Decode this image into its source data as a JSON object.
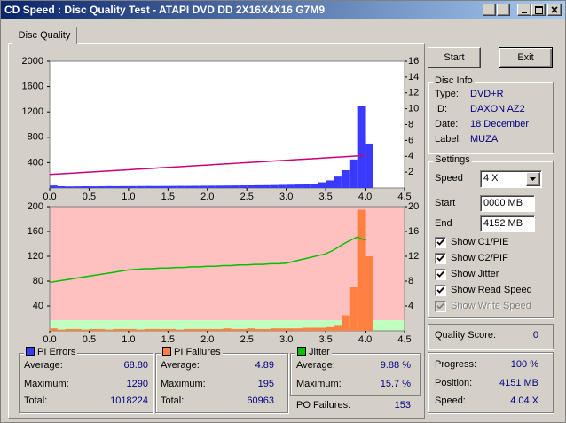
{
  "window": {
    "title": "CD Speed : Disc Quality Test - ATAPI   DVD DD 2X16X4X16 G7M9"
  },
  "tab": "Disc Quality",
  "buttons": [
    "Start",
    "Exit"
  ],
  "disc_info": {
    "title": "Disc Info",
    "rows": [
      {
        "label": "Type:",
        "value": "DVD+R"
      },
      {
        "label": "ID:",
        "value": "DAXON AZ2"
      },
      {
        "label": "Date:",
        "value": "18 December"
      },
      {
        "label": "Label:",
        "value": "MUZA"
      }
    ]
  },
  "settings": {
    "title": "Settings",
    "speed": {
      "label": "Speed",
      "value": "4 X"
    },
    "start": {
      "label": "Start",
      "value": "0000 MB"
    },
    "end": {
      "label": "End",
      "value": "4152 MB"
    },
    "options": [
      {
        "label": "Show C1/PIE",
        "checked": true,
        "enabled": true
      },
      {
        "label": "Show C2/PIF",
        "checked": true,
        "enabled": true
      },
      {
        "label": "Show Jitter",
        "checked": true,
        "enabled": true
      },
      {
        "label": "Show Read Speed",
        "checked": true,
        "enabled": true
      },
      {
        "label": "Show Write Speed",
        "checked": true,
        "enabled": false
      }
    ]
  },
  "quality_score": {
    "label": "Quality Score:",
    "value": "0"
  },
  "progress": [
    {
      "label": "Progress:",
      "value": "100 %"
    },
    {
      "label": "Position:",
      "value": "4151 MB"
    },
    {
      "label": "Speed:",
      "value": "4.04 X"
    }
  ],
  "stats": [
    {
      "title": "PI Errors",
      "rows": [
        {
          "label": "Average:",
          "value": "68.80"
        },
        {
          "label": "Maximum:",
          "value": "1290"
        },
        {
          "label": "Total:",
          "value": "1018224"
        }
      ]
    },
    {
      "title": "PI Failures",
      "rows": [
        {
          "label": "Average:",
          "value": "4.89"
        },
        {
          "label": "Maximum:",
          "value": "195"
        },
        {
          "label": "Total:",
          "value": "60963"
        }
      ]
    },
    {
      "title": "Jitter",
      "rows": [
        {
          "label": "Average:",
          "value": "9.88 %"
        },
        {
          "label": "Maximum:",
          "value": "15.7 %"
        }
      ]
    }
  ],
  "po_failures": {
    "label": "PO Failures:",
    "value": "153"
  },
  "chart_data": [
    {
      "type": "bar",
      "x": [
        0,
        0.1,
        0.2,
        0.3,
        0.4,
        0.5,
        0.6,
        0.7,
        0.8,
        0.9,
        1,
        1.1,
        1.2,
        1.3,
        1.4,
        1.5,
        1.6,
        1.7,
        1.8,
        1.9,
        2,
        2.1,
        2.2,
        2.3,
        2.4,
        2.5,
        2.6,
        2.7,
        2.8,
        2.9,
        3,
        3.1,
        3.2,
        3.3,
        3.4,
        3.5,
        3.6,
        3.7,
        3.8,
        3.9,
        4
      ],
      "xlim": [
        0,
        4.5
      ],
      "xticks": [
        {
          "value": 0,
          "label": "0.0"
        },
        0.5,
        {
          "value": 1,
          "label": "1.0"
        },
        1.5,
        {
          "value": 2,
          "label": "2.0"
        },
        2.5,
        {
          "value": 3,
          "label": "3.0"
        },
        3.5,
        {
          "value": 4,
          "label": "4.0"
        },
        4.5
      ],
      "ylim": [
        0,
        2000
      ],
      "yticks": [
        400,
        800,
        1200,
        1600,
        2000
      ],
      "y2lim": [
        0,
        16
      ],
      "y2ticks": [
        2,
        4,
        6,
        8,
        10,
        12,
        14,
        16
      ],
      "background": "#ffffff",
      "series": [
        {
          "type": "bar",
          "color": "#3a3aff",
          "values": [
            40,
            28,
            25,
            26,
            28,
            27,
            28,
            30,
            29,
            30,
            30,
            31,
            32,
            31,
            32,
            33,
            34,
            34,
            35,
            36,
            37,
            38,
            39,
            40,
            41,
            42,
            44,
            45,
            47,
            50,
            52,
            55,
            60,
            70,
            90,
            120,
            180,
            280,
            450,
            1290,
            700
          ]
        },
        {
          "type": "line",
          "axis": "y2",
          "color": "#cc0077",
          "values": [
            1.7,
            1.76,
            1.82,
            1.88,
            1.94,
            2,
            2.06,
            2.12,
            2.18,
            2.24,
            2.3,
            2.36,
            2.42,
            2.48,
            2.54,
            2.6,
            2.66,
            2.72,
            2.78,
            2.84,
            2.9,
            2.96,
            3.02,
            3.08,
            3.14,
            3.2,
            3.26,
            3.32,
            3.38,
            3.44,
            3.5,
            3.56,
            3.62,
            3.68,
            3.74,
            3.8,
            3.86,
            3.92,
            3.98,
            4.04,
            4.1
          ]
        }
      ]
    },
    {
      "type": "bar",
      "x": [
        0,
        0.1,
        0.2,
        0.3,
        0.4,
        0.5,
        0.6,
        0.7,
        0.8,
        0.9,
        1,
        1.1,
        1.2,
        1.3,
        1.4,
        1.5,
        1.6,
        1.7,
        1.8,
        1.9,
        2,
        2.1,
        2.2,
        2.3,
        2.4,
        2.5,
        2.6,
        2.7,
        2.8,
        2.9,
        3,
        3.1,
        3.2,
        3.3,
        3.4,
        3.5,
        3.6,
        3.7,
        3.8,
        3.9,
        4
      ],
      "xlim": [
        0,
        4.5
      ],
      "xticks": [
        {
          "value": 0,
          "label": "0.0"
        },
        0.5,
        {
          "value": 1,
          "label": "1.0"
        },
        1.5,
        {
          "value": 2,
          "label": "2.0"
        },
        2.5,
        {
          "value": 3,
          "label": "3.0"
        },
        3.5,
        {
          "value": 4,
          "label": "4.0"
        },
        4.5
      ],
      "ylim": [
        0,
        200
      ],
      "yticks": [
        40,
        80,
        120,
        160,
        200
      ],
      "y2lim": [
        0,
        20
      ],
      "y2ticks": [
        4,
        8,
        12,
        16,
        20
      ],
      "background": "#ffc0c0",
      "series": [
        {
          "type": "bar",
          "color": "#ff8040",
          "values": [
            4,
            2,
            3,
            3,
            2,
            3,
            3,
            2,
            3,
            3,
            3,
            2,
            3,
            3,
            3,
            3,
            2,
            3,
            3,
            3,
            3,
            3,
            4,
            3,
            3,
            4,
            3,
            3,
            4,
            4,
            4,
            4,
            5,
            5,
            5,
            6,
            8,
            25,
            70,
            195,
            120
          ]
        },
        {
          "type": "line",
          "axis": "y2",
          "color": "#00c000",
          "values": [
            7.8,
            8,
            8.2,
            8.4,
            8.6,
            8.8,
            9,
            9.2,
            9.4,
            9.6,
            9.8,
            9.9,
            10,
            10,
            10.1,
            10.1,
            10.2,
            10.2,
            10.3,
            10.3,
            10.4,
            10.4,
            10.5,
            10.5,
            10.6,
            10.6,
            10.7,
            10.7,
            10.8,
            10.8,
            10.9,
            11.2,
            11.5,
            11.8,
            12.1,
            12.4,
            13,
            13.8,
            14.5,
            15.1,
            14.6
          ]
        }
      ]
    }
  ]
}
